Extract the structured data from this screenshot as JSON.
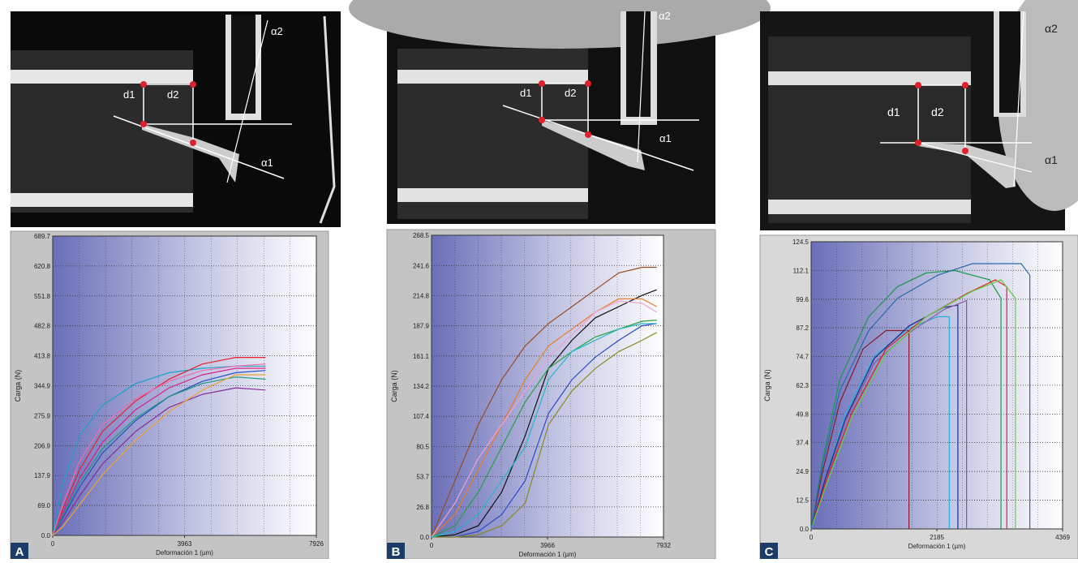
{
  "chart_data": [
    {
      "type": "line",
      "panel_label": "A",
      "photo_labels": [
        "d1",
        "d2",
        "α1",
        "α2"
      ],
      "ylabel": "Carga (N)",
      "xlabel": "Deformación 1 (µm)",
      "xlim": [
        0,
        7926
      ],
      "xticks": [
        0,
        3963,
        7926
      ],
      "ylim": [
        0,
        689.7
      ],
      "yticks": [
        {
          "value": 0,
          "label": "0.0"
        },
        {
          "value": 69,
          "label": "69.0"
        },
        137.9,
        206.9,
        275.9,
        344.9,
        413.8,
        482.8,
        551.8,
        620.8,
        689.7
      ],
      "x": [
        0,
        300,
        800,
        1500,
        2500,
        3500,
        4500,
        5500,
        6400
      ],
      "series": [
        {
          "color": "#1aa3c8",
          "values": [
            0,
            120,
            230,
            300,
            350,
            375,
            385,
            390,
            390
          ]
        },
        {
          "color": "#e8202a",
          "values": [
            0,
            60,
            150,
            240,
            310,
            360,
            395,
            410,
            410
          ]
        },
        {
          "color": "#d61e8c",
          "values": [
            0,
            50,
            130,
            215,
            290,
            340,
            370,
            385,
            385
          ]
        },
        {
          "color": "#2a4bc8",
          "values": [
            0,
            40,
            110,
            190,
            265,
            320,
            355,
            375,
            380
          ]
        },
        {
          "color": "#1a9a7a",
          "values": [
            0,
            45,
            120,
            200,
            270,
            320,
            350,
            365,
            360
          ]
        },
        {
          "color": "#8a2a9a",
          "values": [
            0,
            30,
            90,
            165,
            240,
            295,
            325,
            340,
            335
          ]
        },
        {
          "color": "#f06ab0",
          "values": [
            0,
            70,
            170,
            255,
            315,
            355,
            380,
            390,
            395
          ]
        },
        {
          "color": "#f0a030",
          "values": [
            0,
            20,
            70,
            140,
            220,
            285,
            335,
            370,
            370
          ]
        }
      ]
    },
    {
      "type": "line",
      "panel_label": "B",
      "photo_labels": [
        "d1",
        "d2",
        "α1",
        "α2"
      ],
      "ylabel": "Carga (N)",
      "xlabel": "Deformación 1 (µm)",
      "xlim": [
        0,
        7932
      ],
      "xticks": [
        0,
        3966,
        7932
      ],
      "ylim": [
        0,
        268.5
      ],
      "yticks": [
        {
          "value": 0,
          "label": "0.0"
        },
        26.8,
        53.7,
        80.5,
        107.4,
        134.2,
        161.1,
        187.9,
        214.8,
        241.6,
        268.5
      ],
      "x": [
        0,
        800,
        1600,
        2400,
        3200,
        4000,
        4800,
        5600,
        6400,
        7200,
        7700
      ],
      "series": [
        {
          "color": "#9a4a1a",
          "values": [
            0,
            50,
            100,
            140,
            170,
            190,
            205,
            220,
            235,
            240,
            240
          ]
        },
        {
          "color": "#111111",
          "values": [
            0,
            2,
            10,
            40,
            90,
            150,
            175,
            195,
            205,
            215,
            220
          ]
        },
        {
          "color": "#f07a20",
          "values": [
            0,
            20,
            60,
            100,
            140,
            170,
            185,
            200,
            212,
            212,
            205
          ]
        },
        {
          "color": "#2aa040",
          "values": [
            0,
            10,
            40,
            80,
            120,
            150,
            165,
            178,
            185,
            192,
            193
          ]
        },
        {
          "color": "#2a4bc8",
          "values": [
            0,
            0,
            5,
            20,
            50,
            110,
            140,
            160,
            175,
            188,
            190
          ]
        },
        {
          "color": "#8a8a20",
          "values": [
            0,
            0,
            2,
            10,
            30,
            100,
            130,
            150,
            165,
            175,
            182
          ]
        },
        {
          "color": "#f0a0d0",
          "values": [
            0,
            30,
            70,
            100,
            130,
            160,
            180,
            200,
            210,
            208,
            200
          ]
        },
        {
          "color": "#20b8c8",
          "values": [
            0,
            5,
            20,
            50,
            80,
            140,
            165,
            175,
            185,
            190,
            190
          ]
        }
      ]
    },
    {
      "type": "line",
      "panel_label": "C",
      "photo_labels": [
        "d1",
        "d2",
        "α1",
        "α2"
      ],
      "ylabel": "Carga (N)",
      "xlabel": "Deformación 1 (µm)",
      "xlim": [
        0,
        4369
      ],
      "xticks": [
        0,
        2185,
        4369
      ],
      "ylim": [
        0,
        124.5
      ],
      "yticks": [
        {
          "value": 0,
          "label": "0.0"
        },
        12.5,
        24.9,
        37.4,
        49.8,
        62.3,
        74.7,
        87.2,
        99.6,
        112.1,
        124.5
      ],
      "series": [
        {
          "color": "#8a1a2a",
          "x": [
            0,
            200,
            500,
            900,
            1300,
            1700,
            1700
          ],
          "values": [
            0,
            25,
            55,
            78,
            86,
            86,
            0
          ]
        },
        {
          "color": "#20b0e0",
          "x": [
            0,
            250,
            600,
            1100,
            1700,
            2200,
            2400,
            2400
          ],
          "values": [
            0,
            22,
            50,
            75,
            87,
            92,
            92,
            0
          ]
        },
        {
          "color": "#1a2a8a",
          "x": [
            0,
            250,
            600,
            1100,
            1700,
            2300,
            2550,
            2550
          ],
          "values": [
            0,
            22,
            48,
            74,
            88,
            96,
            97,
            0
          ]
        },
        {
          "color": "#8a5aa0",
          "x": [
            0,
            250,
            600,
            1100,
            1700,
            2300,
            2700,
            2700
          ],
          "values": [
            0,
            20,
            47,
            72,
            85,
            95,
            99,
            0
          ]
        },
        {
          "color": "#1a9a4a",
          "x": [
            0,
            200,
            500,
            1000,
            1500,
            2000,
            2500,
            3100,
            3300,
            3300
          ],
          "values": [
            0,
            30,
            65,
            92,
            105,
            111,
            112,
            108,
            100,
            0
          ]
        },
        {
          "color": "#e0202a",
          "x": [
            0,
            250,
            700,
            1300,
            2000,
            2700,
            3200,
            3400,
            3400
          ],
          "values": [
            0,
            20,
            50,
            78,
            92,
            102,
            108,
            105,
            0
          ]
        },
        {
          "color": "#60d040",
          "x": [
            0,
            250,
            700,
            1300,
            2000,
            2800,
            3300,
            3550,
            3550
          ],
          "values": [
            0,
            18,
            48,
            76,
            92,
            103,
            108,
            100,
            0
          ]
        },
        {
          "color": "#2a6ab0",
          "x": [
            0,
            200,
            500,
            1000,
            1500,
            2200,
            2800,
            3650,
            3800,
            3800
          ],
          "values": [
            0,
            28,
            60,
            86,
            100,
            110,
            115,
            115,
            110,
            0
          ]
        }
      ]
    }
  ]
}
